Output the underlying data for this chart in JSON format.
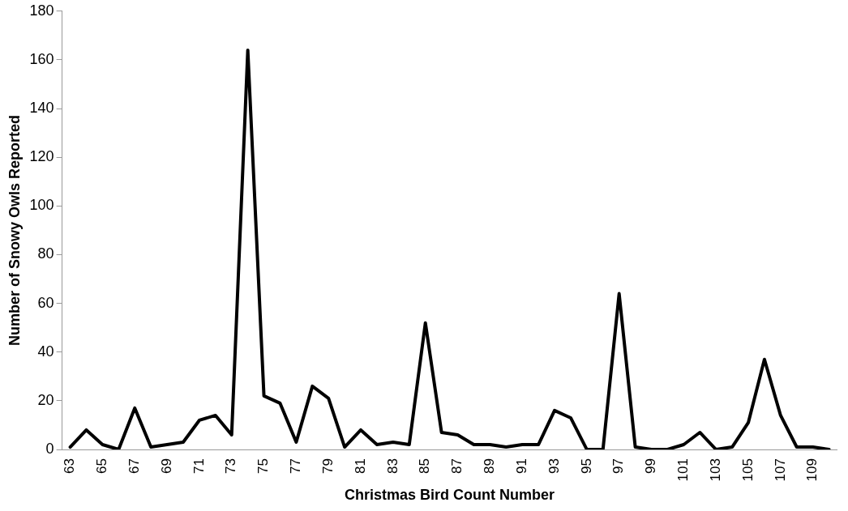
{
  "chart_data": {
    "type": "line",
    "xlabel": "Christmas Bird Count Number",
    "ylabel": "Number of Snowy Owls Reported",
    "categories": [
      "63",
      null,
      "65",
      null,
      "67",
      null,
      "69",
      null,
      "71",
      null,
      "73",
      null,
      "75",
      null,
      "77",
      null,
      "79",
      null,
      "81",
      null,
      "83",
      null,
      "85",
      null,
      "87",
      null,
      "89",
      null,
      "91",
      null,
      "93",
      null,
      "95",
      null,
      "97",
      null,
      "99",
      null,
      "101",
      null,
      "103",
      null,
      "105",
      null,
      "107",
      null,
      "109",
      null
    ],
    "series": [
      {
        "color": "#000000",
        "values": [
          1,
          8,
          2,
          0,
          17,
          1,
          2,
          3,
          12,
          14,
          6,
          164,
          22,
          19,
          3,
          26,
          21,
          1,
          8,
          2,
          3,
          2,
          52,
          7,
          6,
          2,
          2,
          1,
          2,
          2,
          16,
          13,
          0,
          0,
          64,
          1,
          0,
          0,
          2,
          7,
          0,
          1,
          11,
          37,
          14,
          1,
          1,
          0
        ]
      }
    ],
    "ylim": [
      0,
      180
    ],
    "yticks": [
      0,
      20,
      40,
      60,
      80,
      100,
      120,
      140,
      160,
      180
    ],
    "grid": false,
    "legend": false,
    "marker": "none",
    "line_style": "solid"
  }
}
